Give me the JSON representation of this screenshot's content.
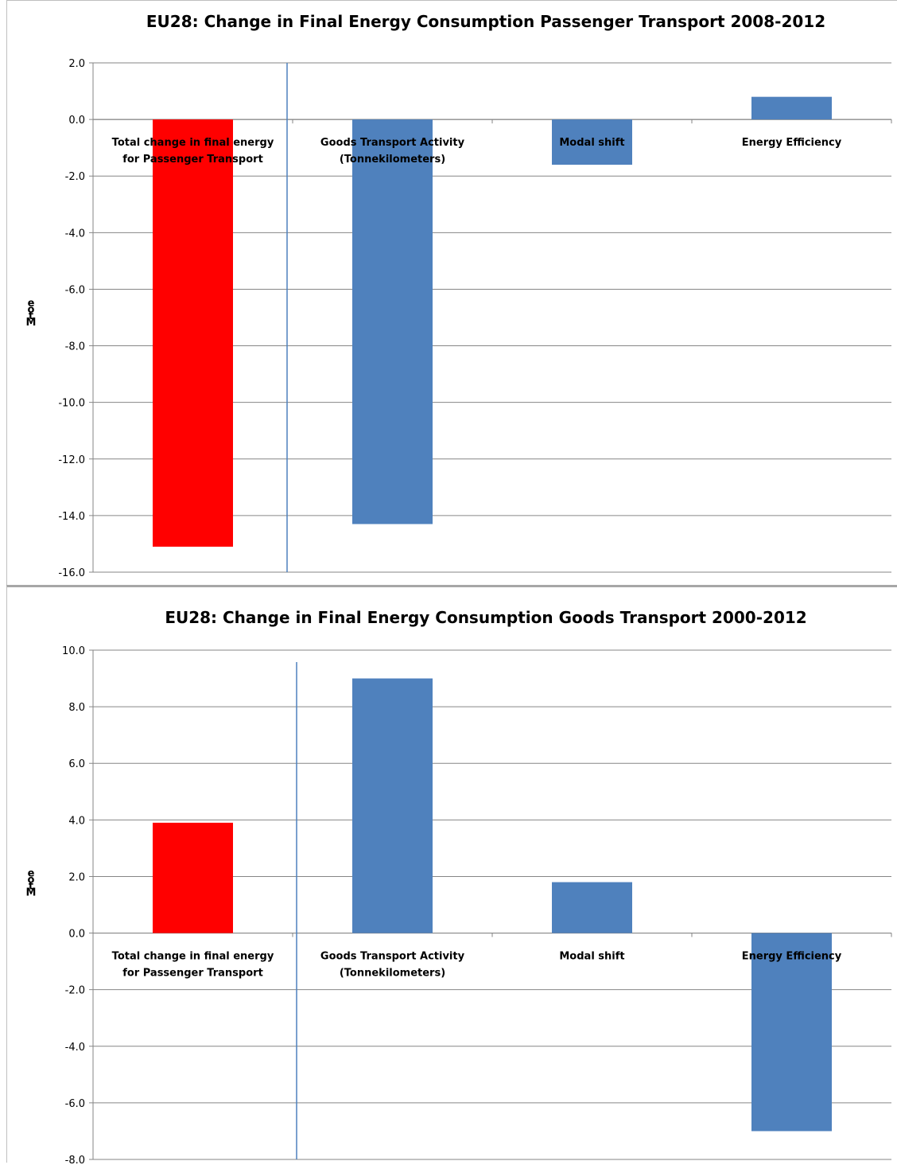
{
  "chart_data": [
    {
      "type": "bar",
      "title": "EU28: Change in Final Energy Consumption Passenger Transport 2008-2012",
      "ylabel": "Mtoe",
      "ylim": [
        -16,
        2
      ],
      "ytick_step": 2,
      "ytick_labels": [
        "2.0",
        "0.0",
        "-2.0",
        "-4.0",
        "-6.0",
        "-8.0",
        "-10.0",
        "-12.0",
        "-14.0",
        "-16.0"
      ],
      "grid": true,
      "categories": [
        [
          "Total change in final energy",
          "for Passenger Transport"
        ],
        [
          "Goods Transport Activity",
          "(Tonnekilometers)"
        ],
        [
          "Modal shift"
        ],
        [
          "Energy Efficiency"
        ]
      ],
      "values": [
        -15.1,
        -14.3,
        -1.6,
        0.8
      ],
      "colors": [
        "#ff0000",
        "#4f81bd",
        "#4f81bd",
        "#4f81bd"
      ]
    },
    {
      "type": "bar",
      "title": "EU28: Change in Final Energy Consumption Goods Transport 2000-2012",
      "ylabel": "Mtoe",
      "ylim": [
        -8,
        10
      ],
      "ytick_step": 2,
      "ytick_labels": [
        "10.0",
        "8.0",
        "6.0",
        "4.0",
        "2.0",
        "0.0",
        "-2.0",
        "-4.0",
        "-6.0",
        "-8.0"
      ],
      "grid": true,
      "categories": [
        [
          "Total change in final energy",
          "for Passenger Transport"
        ],
        [
          "Goods Transport Activity",
          "(Tonnekilometers)"
        ],
        [
          "Modal shift"
        ],
        [
          "Energy Efficiency"
        ]
      ],
      "values": [
        3.9,
        9.0,
        1.8,
        -7.0
      ],
      "colors": [
        "#ff0000",
        "#4f81bd",
        "#4f81bd",
        "#4f81bd"
      ]
    }
  ]
}
